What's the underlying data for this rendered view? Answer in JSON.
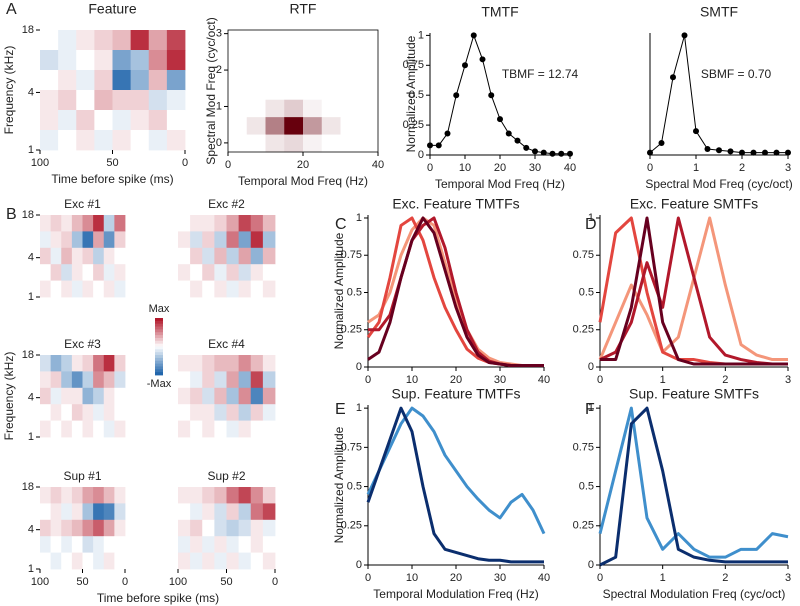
{
  "chart_data": [
    {
      "type": "heatmap",
      "panel": "A",
      "title": "Feature",
      "xlabel": "Time before spike (ms)",
      "ylabel": "Frequency (kHz)",
      "xlim": [
        100,
        0
      ],
      "xticks": [
        100,
        50,
        0
      ],
      "ylim": [
        1,
        18
      ],
      "yticks": [
        1,
        4,
        18
      ],
      "log_y": true,
      "values": [
        [
          0,
          -0.1,
          0.1,
          0.2,
          0.3,
          0.9,
          0.4,
          0.8
        ],
        [
          -0.2,
          -0.1,
          0,
          0.1,
          -0.6,
          -0.4,
          0.5,
          0.9
        ],
        [
          0,
          0.1,
          -0.1,
          0.2,
          -0.9,
          -0.5,
          0.3,
          -0.6
        ],
        [
          0.1,
          0.2,
          0,
          0.3,
          0.2,
          0.2,
          -0.2,
          -0.1
        ],
        [
          0.1,
          -0.1,
          0.2,
          0,
          -0.1,
          0.1,
          0.2,
          0
        ],
        [
          -0.1,
          0,
          0.1,
          -0.1,
          0.1,
          0,
          -0.1,
          0.1
        ]
      ]
    },
    {
      "type": "heatmap",
      "title": "RTF",
      "xlabel": "Temporal Mod Freq (Hz)",
      "ylabel": "Spectral Mod Freq (cyc/oct)",
      "xlim": [
        0,
        40
      ],
      "xticks": [
        0,
        20,
        40
      ],
      "ylim": [
        -0.25,
        3.1
      ],
      "yticks": [
        0,
        1,
        2,
        3
      ],
      "values": [
        [
          0,
          0,
          0,
          0,
          0,
          0,
          0,
          0
        ],
        [
          0,
          0,
          0,
          0,
          0,
          0,
          0,
          0
        ],
        [
          0,
          0,
          0,
          0,
          0,
          0,
          0,
          0
        ],
        [
          0,
          0,
          0,
          0,
          0,
          0,
          0,
          0
        ],
        [
          0,
          0,
          0.1,
          0.2,
          0.05,
          0,
          0,
          0
        ],
        [
          0,
          0.1,
          0.5,
          1,
          0.4,
          0.1,
          0,
          0
        ],
        [
          0,
          0,
          0.1,
          0.15,
          0.05,
          0,
          0,
          0
        ]
      ]
    },
    {
      "type": "line",
      "title": "TMTF",
      "xlabel": "Temporal Mod Freq (Hz)",
      "ylabel": "Normalized Amplitude",
      "annotation": "TBMF = 12.74",
      "markers": true,
      "xlim": [
        0,
        40
      ],
      "xticks": [
        0,
        10,
        20,
        30,
        40
      ],
      "ylim": [
        0,
        1.02
      ],
      "yticks": [
        0,
        0.25,
        0.5,
        0.75,
        1
      ],
      "x": [
        0,
        2.5,
        5,
        7.5,
        10,
        12.5,
        15,
        17.5,
        20,
        22.5,
        25,
        27.5,
        30,
        32.5,
        35,
        37.5,
        40
      ],
      "series": [
        {
          "color": "#000000",
          "values": [
            0.08,
            0.08,
            0.18,
            0.5,
            0.75,
            1,
            0.8,
            0.5,
            0.3,
            0.18,
            0.12,
            0.06,
            0.03,
            0.02,
            0.01,
            0.01,
            0.01
          ]
        }
      ]
    },
    {
      "type": "line",
      "title": "SMTF",
      "xlabel": "Spectral Mod Freq (cyc/oct)",
      "annotation": "SBMF = 0.70",
      "markers": true,
      "xlim": [
        0,
        3
      ],
      "xticks": [
        0,
        1,
        2,
        3
      ],
      "ylim": [
        0,
        1.02
      ],
      "x": [
        0,
        0.25,
        0.5,
        0.75,
        1,
        1.25,
        1.5,
        1.75,
        2,
        2.25,
        2.5,
        2.75,
        3
      ],
      "series": [
        {
          "color": "#000000",
          "values": [
            0.02,
            0.1,
            0.65,
            1,
            0.2,
            0.05,
            0.04,
            0.03,
            0.02,
            0.02,
            0.02,
            0.02,
            0.02
          ]
        }
      ]
    },
    {
      "type": "heatmap",
      "panel": "B",
      "title": "Exc #1",
      "colorbar_labels": {
        "max": "Max",
        "min": "-Max"
      },
      "ylim": [
        1,
        18
      ],
      "yticks": [
        1,
        4,
        18
      ],
      "log_y": true,
      "values": [
        [
          0.1,
          0.2,
          0.1,
          0.3,
          0.5,
          0.9,
          -0.3,
          0.6
        ],
        [
          -0.1,
          0.1,
          0.2,
          -0.4,
          -0.9,
          0.4,
          -0.7,
          0.2
        ],
        [
          0.2,
          -0.1,
          0.3,
          0.1,
          0.2,
          -0.3,
          0.1,
          0
        ],
        [
          0,
          0.2,
          -0.2,
          0.1,
          0,
          0.2,
          -0.1,
          0.1
        ],
        [
          0.1,
          0,
          0.1,
          -0.1,
          0.1,
          0,
          0.1,
          -0.1
        ]
      ]
    },
    {
      "type": "heatmap",
      "title": "Exc #2",
      "values": [
        [
          0,
          0.1,
          0.1,
          0.2,
          0.4,
          0.8,
          0.6,
          0.3
        ],
        [
          0.1,
          -0.2,
          0.2,
          -0.3,
          0.6,
          -0.6,
          0.9,
          -0.4
        ],
        [
          0,
          0.2,
          -0.2,
          0.3,
          -0.3,
          0.4,
          -0.5,
          0.3
        ],
        [
          0.1,
          0,
          0.2,
          -0.1,
          0.2,
          -0.2,
          0.1,
          0
        ],
        [
          0,
          0.1,
          0,
          0.1,
          -0.1,
          0.1,
          0,
          0.1
        ]
      ]
    },
    {
      "type": "heatmap",
      "title": "Exc #3",
      "ylabel": "Frequency (kHz)",
      "ylim": [
        1,
        18
      ],
      "yticks": [
        1,
        4,
        18
      ],
      "log_y": true,
      "values": [
        [
          -0.2,
          -0.5,
          -0.3,
          0.1,
          0.2,
          0.6,
          0.9,
          0.2
        ],
        [
          0.1,
          0.2,
          -0.4,
          -0.7,
          -0.3,
          0.5,
          0.3,
          -0.2
        ],
        [
          0.2,
          -0.1,
          0.1,
          0.1,
          -0.5,
          -0.3,
          0.1,
          0
        ],
        [
          0,
          0.1,
          0,
          0.2,
          0.1,
          -0.1,
          0.1,
          0
        ],
        [
          0.1,
          0,
          0.1,
          0,
          0.1,
          0,
          -0.1,
          0.1
        ]
      ]
    },
    {
      "type": "heatmap",
      "title": "Exc #4",
      "values": [
        [
          0.1,
          0.1,
          0.2,
          0.3,
          0.3,
          0.5,
          0.3,
          0.1
        ],
        [
          0,
          -0.1,
          0.2,
          -0.2,
          0.4,
          -0.5,
          0.8,
          -0.3
        ],
        [
          0.1,
          0.2,
          -0.2,
          0.3,
          -0.4,
          0.5,
          -0.8,
          0.4
        ],
        [
          0,
          0.1,
          0.1,
          -0.2,
          0.2,
          -0.3,
          0.2,
          -0.1
        ],
        [
          0.1,
          0,
          0.1,
          0,
          -0.1,
          0.1,
          0,
          0
        ]
      ]
    },
    {
      "type": "heatmap",
      "title": "Sup #1",
      "xlabel": "Time before spike (ms)",
      "xlim": [
        100,
        0
      ],
      "xticks": [
        100,
        50,
        0
      ],
      "ylim": [
        1,
        18
      ],
      "yticks": [
        1,
        4,
        18
      ],
      "log_y": true,
      "values": [
        [
          0.1,
          0.2,
          0.1,
          0.2,
          0.4,
          0.5,
          0.3,
          0.1
        ],
        [
          0,
          0.1,
          -0.1,
          0.1,
          -0.4,
          -0.9,
          -0.8,
          -0.2
        ],
        [
          0.2,
          0.1,
          0.2,
          0.3,
          0.5,
          0.7,
          0.4,
          0.1
        ],
        [
          -0.1,
          0,
          -0.1,
          0,
          -0.2,
          -0.1,
          0,
          0
        ],
        [
          0,
          -0.1,
          0,
          0.1,
          0,
          -0.1,
          0.1,
          0
        ]
      ]
    },
    {
      "type": "heatmap",
      "title": "Sup #2",
      "xlim": [
        100,
        0
      ],
      "xticks": [
        100,
        50,
        0
      ],
      "values": [
        [
          0.1,
          0.1,
          0.2,
          0.3,
          0.6,
          0.8,
          0.5,
          0.2
        ],
        [
          0,
          -0.1,
          0.1,
          -0.2,
          0.2,
          -0.3,
          0.6,
          0.8
        ],
        [
          0.1,
          0.2,
          0,
          -0.2,
          -0.3,
          -0.2,
          0.1,
          -0.1
        ],
        [
          -0.1,
          0.1,
          -0.1,
          0.1,
          -0.1,
          0,
          0.1,
          0
        ],
        [
          0.1,
          -0.1,
          0.1,
          -0.1,
          0.1,
          -0.1,
          0,
          0.1
        ]
      ]
    },
    {
      "type": "line",
      "panel": "C",
      "title": "Exc. Feature TMTFs",
      "ylabel": "Normalized Amplitude",
      "xlim": [
        0,
        40
      ],
      "xticks": [
        0,
        10,
        20,
        30,
        40
      ],
      "ylim": [
        0,
        1.02
      ],
      "yticks": [
        0,
        0.25,
        0.5,
        0.75,
        1
      ],
      "x": [
        0,
        2.5,
        5,
        7.5,
        10,
        12.5,
        15,
        17.5,
        20,
        22.5,
        25,
        27.5,
        30,
        32.5,
        35,
        37.5,
        40
      ],
      "series": [
        {
          "color": "#f4967a",
          "values": [
            0.3,
            0.35,
            0.5,
            0.75,
            0.92,
            1,
            0.95,
            0.7,
            0.45,
            0.25,
            0.12,
            0.06,
            0.03,
            0.02,
            0.01,
            0.01,
            0.01
          ]
        },
        {
          "color": "#e3463f",
          "values": [
            0.2,
            0.3,
            0.6,
            0.95,
            1,
            0.85,
            0.6,
            0.4,
            0.25,
            0.12,
            0.06,
            0.03,
            0.02,
            0.01,
            0.01,
            0.01,
            0.01
          ]
        },
        {
          "color": "#b2182b",
          "values": [
            0.25,
            0.25,
            0.35,
            0.6,
            0.85,
            0.95,
            1,
            0.8,
            0.5,
            0.25,
            0.1,
            0.04,
            0.02,
            0.01,
            0.01,
            0.01,
            0.01
          ]
        },
        {
          "color": "#67001f",
          "values": [
            0.05,
            0.1,
            0.3,
            0.6,
            0.85,
            1,
            0.9,
            0.65,
            0.4,
            0.2,
            0.08,
            0.03,
            0.02,
            0.01,
            0.01,
            0.01,
            0.01
          ]
        }
      ]
    },
    {
      "type": "line",
      "panel": "D",
      "title": "Exc. Feature SMTFs",
      "xlim": [
        0,
        3
      ],
      "xticks": [
        0,
        1,
        2,
        3
      ],
      "ylim": [
        0,
        1.02
      ],
      "yticks": [
        0,
        0.25,
        0.5,
        0.75,
        1
      ],
      "x": [
        0,
        0.25,
        0.5,
        0.75,
        1,
        1.25,
        1.5,
        1.75,
        2,
        2.25,
        2.5,
        2.75,
        3
      ],
      "series": [
        {
          "color": "#f4967a",
          "values": [
            0.05,
            0.3,
            0.55,
            0.35,
            0.1,
            0.2,
            0.6,
            1,
            0.55,
            0.15,
            0.08,
            0.05,
            0.05
          ]
        },
        {
          "color": "#e3463f",
          "values": [
            0.3,
            0.9,
            1,
            0.5,
            0.1,
            0.05,
            0.05,
            0.03,
            0.02,
            0.02,
            0.02,
            0.02,
            0.02
          ]
        },
        {
          "color": "#b2182b",
          "values": [
            0.05,
            0.1,
            0.3,
            0.7,
            0.4,
            1,
            0.6,
            0.2,
            0.08,
            0.05,
            0.03,
            0.02,
            0.02
          ]
        },
        {
          "color": "#67001f",
          "values": [
            0.05,
            0.05,
            0.4,
            1,
            0.3,
            0.05,
            0.02,
            0.02,
            0.02,
            0.02,
            0.02,
            0.02,
            0.02
          ]
        }
      ]
    },
    {
      "type": "line",
      "panel": "E",
      "title": "Sup. Feature TMTFs",
      "ylabel": "Normalized Amplitude",
      "xlabel": "Temporal Modulation Freq (Hz)",
      "xlim": [
        0,
        40
      ],
      "xticks": [
        0,
        10,
        20,
        30,
        40
      ],
      "ylim": [
        0,
        1.02
      ],
      "yticks": [
        0,
        0.25,
        0.5,
        0.75,
        1
      ],
      "x": [
        0,
        2.5,
        5,
        7.5,
        10,
        12.5,
        15,
        17.5,
        20,
        22.5,
        25,
        27.5,
        30,
        32.5,
        35,
        37.5,
        40
      ],
      "series": [
        {
          "color": "#3f8fcc",
          "values": [
            0.45,
            0.6,
            0.75,
            0.9,
            1,
            0.95,
            0.85,
            0.7,
            0.6,
            0.5,
            0.42,
            0.35,
            0.3,
            0.4,
            0.45,
            0.35,
            0.2
          ]
        },
        {
          "color": "#0b2e6e",
          "values": [
            0.4,
            0.6,
            0.8,
            1,
            0.85,
            0.5,
            0.2,
            0.1,
            0.08,
            0.06,
            0.04,
            0.03,
            0.03,
            0.02,
            0.02,
            0.02,
            0.02
          ]
        }
      ]
    },
    {
      "type": "line",
      "panel": "F",
      "title": "Sup. Feature SMTFs",
      "xlabel": "Spectral Modulation Freq (cyc/oct)",
      "xlim": [
        0,
        3
      ],
      "xticks": [
        0,
        1,
        2,
        3
      ],
      "ylim": [
        0,
        1.02
      ],
      "yticks": [
        0,
        0.25,
        0.5,
        0.75,
        1
      ],
      "x": [
        0,
        0.25,
        0.5,
        0.75,
        1,
        1.25,
        1.5,
        1.75,
        2,
        2.25,
        2.5,
        2.75,
        3
      ],
      "series": [
        {
          "color": "#3f8fcc",
          "values": [
            0.2,
            0.6,
            1,
            0.3,
            0.1,
            0.2,
            0.1,
            0.05,
            0.05,
            0.1,
            0.1,
            0.2,
            0.18
          ]
        },
        {
          "color": "#0b2e6e",
          "values": [
            0,
            0.05,
            0.9,
            1,
            0.6,
            0.1,
            0.05,
            0.03,
            0.02,
            0.02,
            0.02,
            0.02,
            0.02
          ]
        }
      ]
    }
  ]
}
